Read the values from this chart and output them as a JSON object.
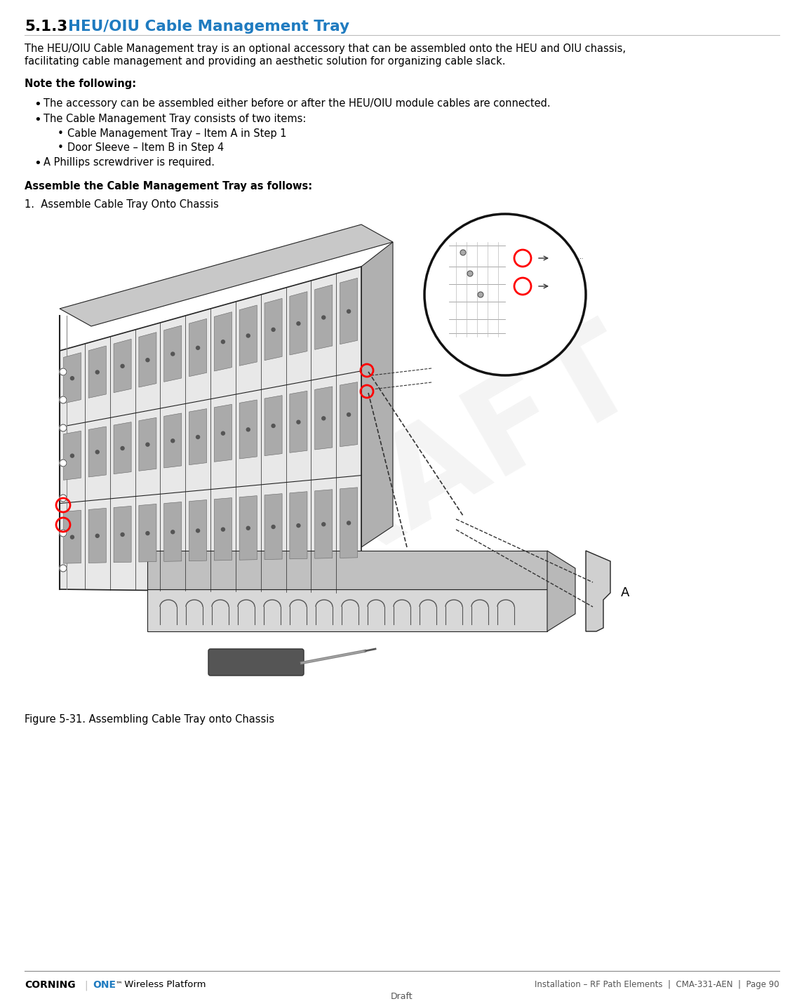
{
  "title_number": "5.1.3",
  "title_text": "HEU/OIU Cable Management Tray",
  "title_color": "#1F7BC0",
  "title_fontsize": 15.5,
  "body_fontsize": 10.5,
  "bold_fontsize": 10.5,
  "background_color": "#ffffff",
  "text_color": "#000000",
  "para1_line1": "The HEU/OIU Cable Management tray is an optional accessory that can be assembled onto the HEU and OIU chassis,",
  "para1_line2": "facilitating cable management and providing an aesthetic solution for organizing cable slack.",
  "note_heading": "Note the following:",
  "bullet1": "The accessory can be assembled either before or after the HEU/OIU module cables are connected.",
  "bullet2": "The Cable Management Tray consists of two items:",
  "sub_bullet1": "Cable Management Tray – Item A in Step 1",
  "sub_bullet2": "Door Sleeve – Item B in Step 4",
  "bullet3": "A Phillips screwdriver is required.",
  "assemble_heading": "Assemble the Cable Management Tray as follows:",
  "step1": "1.  Assemble Cable Tray Onto Chassis",
  "figure_caption": "Figure 5-31. Assembling Cable Tray onto Chassis",
  "footer_right": "Installation – RF Path Elements  |  CMA-331-AEN  |  Page 90",
  "footer_draft": "Draft",
  "one_color": "#1F7BC0",
  "draft_watermark_color": "#cccccc",
  "line_gray": "#999999",
  "dark_line": "#222222",
  "mid_gray": "#888888",
  "light_gray": "#dddddd"
}
